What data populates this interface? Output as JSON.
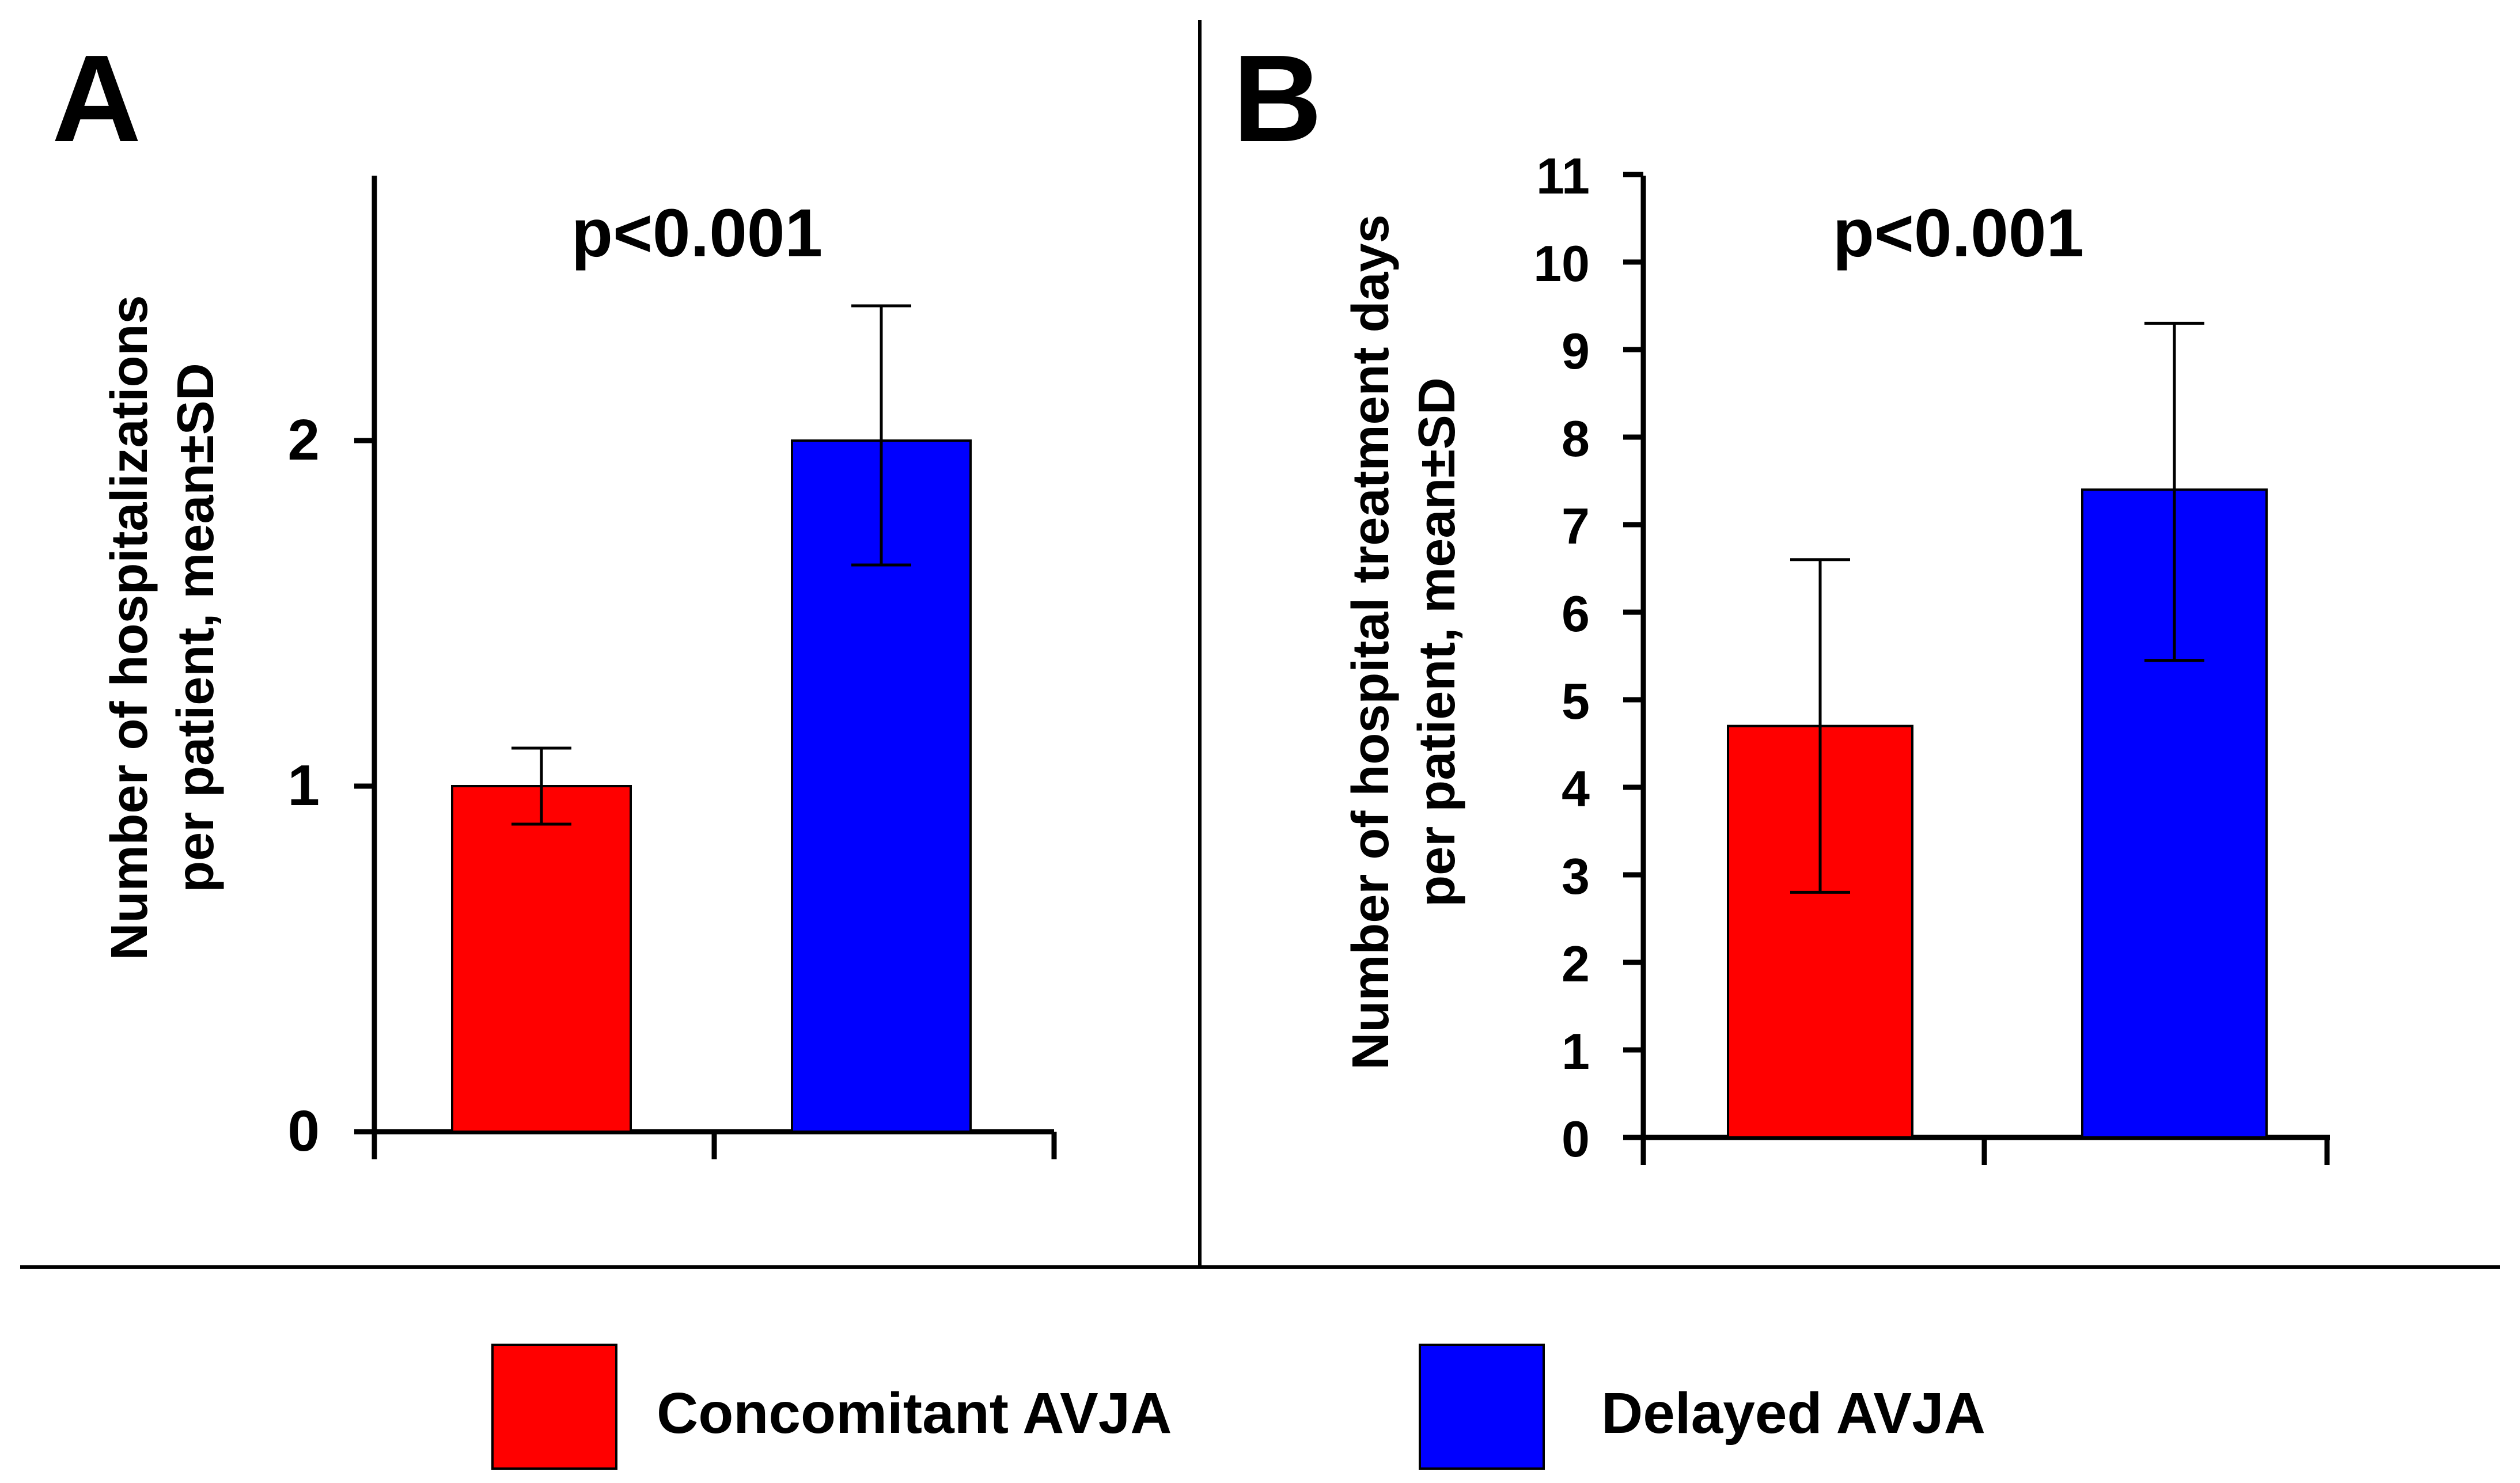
{
  "colors": {
    "concomitant": "#ff0000",
    "delayed": "#0000ff",
    "axis": "#000000"
  },
  "legend": {
    "items": [
      {
        "label": "Concomitant AVJA",
        "color": "#ff0000"
      },
      {
        "label": "Delayed AVJA",
        "color": "#0000ff"
      }
    ],
    "position": "bottom-center"
  },
  "chart_data": [
    {
      "panel": "A",
      "type": "bar",
      "annotation": "p<0.001",
      "ylabel_line1": "Number of hospitalizations",
      "ylabel_line2": "per patient, mean±SD",
      "yticks": [
        "0",
        "1",
        "2"
      ],
      "ylim": [
        0,
        2.8
      ],
      "categories": [
        "Concomitant AVJA",
        "Delayed AVJA"
      ],
      "values": [
        1.0,
        2.0
      ],
      "err_low": [
        0.89,
        1.64
      ],
      "err_high": [
        1.11,
        2.39
      ],
      "colors": [
        "#ff0000",
        "#0000ff"
      ]
    },
    {
      "panel": "B",
      "type": "bar",
      "annotation": "p<0.001",
      "ylabel_line1": "Number of hospital treatment days",
      "ylabel_line2": "per patient, mean±SD",
      "yticks": [
        "0",
        "1",
        "2",
        "3",
        "4",
        "5",
        "6",
        "7",
        "8",
        "9",
        "10",
        "11"
      ],
      "ylim": [
        0,
        11
      ],
      "categories": [
        "Concomitant AVJA",
        "Delayed AVJA"
      ],
      "values": [
        4.7,
        7.4
      ],
      "err_low": [
        2.8,
        5.45
      ],
      "err_high": [
        6.6,
        9.3
      ],
      "colors": [
        "#ff0000",
        "#0000ff"
      ]
    }
  ]
}
